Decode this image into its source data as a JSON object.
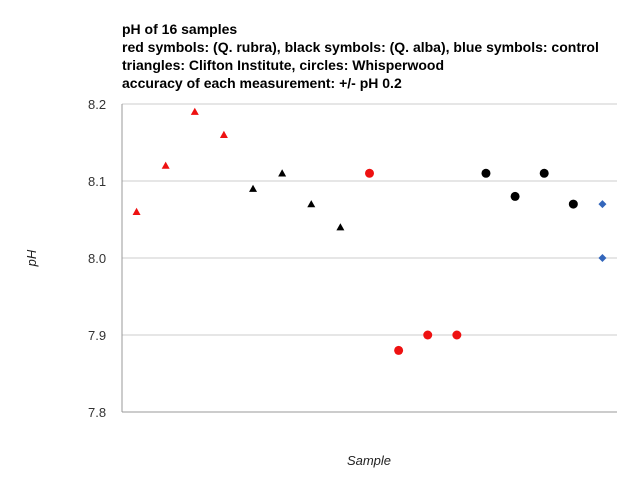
{
  "chart_data": {
    "type": "scatter",
    "title_lines": [
      "pH of 16 samples",
      "red symbols: (Q. rubra), black symbols: (Q. alba), blue symbols: control",
      "triangles: Clifton Institute, circles: Whisperwood",
      "accuracy of each measurement: +/- pH 0.2"
    ],
    "xlabel": "Sample",
    "ylabel": "pH",
    "ylim": [
      7.8,
      8.2
    ],
    "y_ticks": [
      "7.8",
      "7.9",
      "8.0",
      "8.1",
      "8.2"
    ],
    "y_tick_values": [
      7.8,
      7.9,
      8.0,
      8.1,
      8.2
    ],
    "xlim": [
      0.5,
      17.5
    ],
    "grid": true,
    "colors": {
      "red": "#ee1111",
      "black": "#000000",
      "blue": "#3366bb"
    },
    "series": [
      {
        "name": "Q. rubra - Clifton Institute",
        "color": "red",
        "marker": "triangle",
        "x": [
          1,
          2,
          3,
          4
        ],
        "y": [
          8.06,
          8.12,
          8.19,
          8.16
        ]
      },
      {
        "name": "Q. alba - Clifton Institute",
        "color": "black",
        "marker": "triangle",
        "x": [
          5,
          6,
          7,
          8
        ],
        "y": [
          8.09,
          8.11,
          8.07,
          8.04
        ]
      },
      {
        "name": "Q. rubra - Whisperwood",
        "color": "red",
        "marker": "circle",
        "x": [
          9,
          10,
          11,
          12
        ],
        "y": [
          8.11,
          7.88,
          7.9,
          7.9
        ]
      },
      {
        "name": "Q. alba - Whisperwood",
        "color": "black",
        "marker": "circle",
        "x": [
          13,
          14,
          15,
          16
        ],
        "y": [
          8.11,
          8.08,
          8.11,
          8.07
        ]
      },
      {
        "name": "control",
        "color": "blue",
        "marker": "diamond",
        "x": [
          17,
          17
        ],
        "y": [
          8.07,
          8.0
        ]
      }
    ]
  }
}
